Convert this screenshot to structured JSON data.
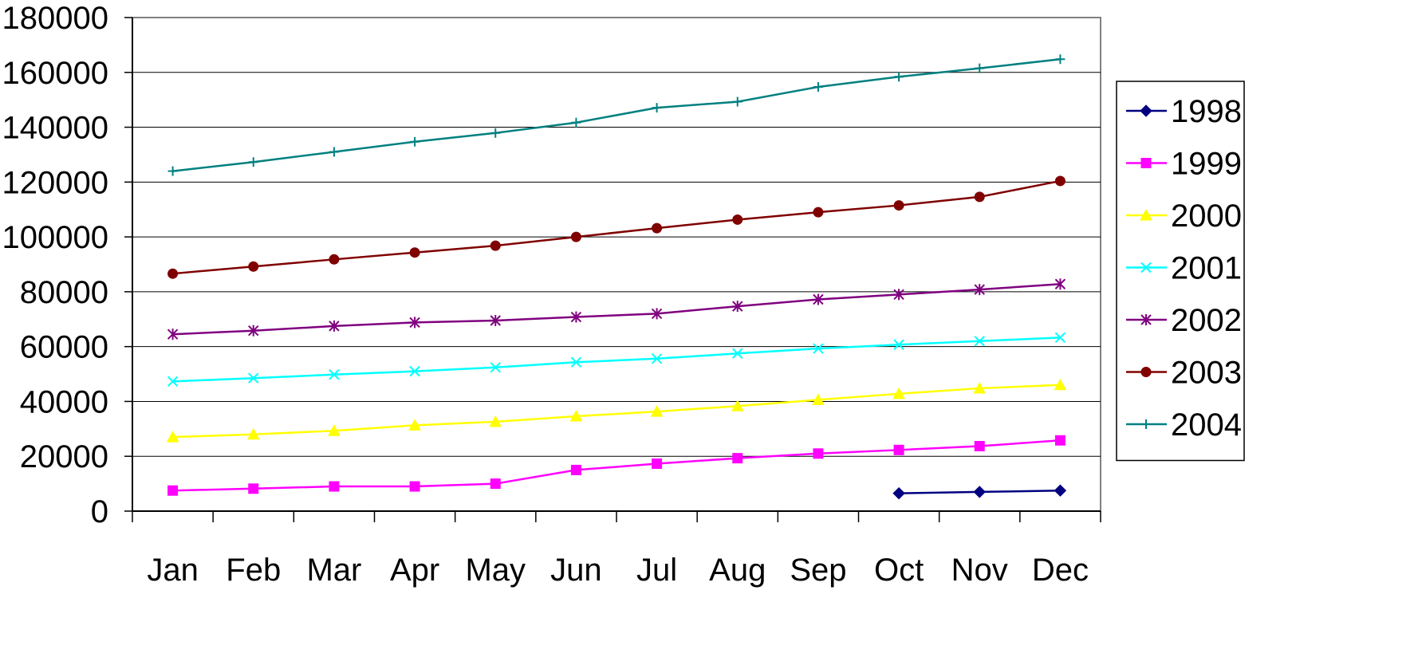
{
  "chart_data": {
    "type": "line",
    "title": "",
    "xlabel": "",
    "ylabel": "",
    "categories": [
      "Jan",
      "Feb",
      "Mar",
      "Apr",
      "May",
      "Jun",
      "Jul",
      "Aug",
      "Sep",
      "Oct",
      "Nov",
      "Dec"
    ],
    "ylim": [
      0,
      180000
    ],
    "yticks": [
      "0",
      "20000",
      "40000",
      "60000",
      "80000",
      "100000",
      "120000",
      "140000",
      "160000",
      "180000"
    ],
    "grid": "horizontal",
    "legend": "right",
    "series": [
      {
        "name": "1998",
        "color": "#000080",
        "marker": "diamond",
        "values": [
          null,
          null,
          null,
          null,
          null,
          null,
          null,
          null,
          null,
          6500,
          7000,
          7500
        ]
      },
      {
        "name": "1999",
        "color": "#FF00FF",
        "marker": "square",
        "values": [
          7500,
          8200,
          9000,
          9000,
          10000,
          15000,
          17300,
          19300,
          21000,
          22300,
          23700,
          25800
        ]
      },
      {
        "name": "2000",
        "color": "#FFFF00",
        "marker": "triangle",
        "values": [
          27000,
          28000,
          29300,
          31300,
          32600,
          34600,
          36300,
          38300,
          40600,
          42800,
          44800,
          46000
        ]
      },
      {
        "name": "2001",
        "color": "#00FFFF",
        "marker": "x",
        "values": [
          47300,
          48500,
          49800,
          51000,
          52400,
          54300,
          55600,
          57500,
          59300,
          60700,
          62000,
          63300
        ]
      },
      {
        "name": "2002",
        "color": "#800080",
        "marker": "star",
        "values": [
          64500,
          65800,
          67500,
          68800,
          69500,
          70800,
          72000,
          74700,
          77200,
          79000,
          80800,
          82800
        ]
      },
      {
        "name": "2003",
        "color": "#800000",
        "marker": "circle",
        "values": [
          86600,
          89200,
          91800,
          94300,
          96800,
          100000,
          103200,
          106300,
          109000,
          111500,
          114600,
          120400
        ]
      },
      {
        "name": "2004",
        "color": "#008080",
        "marker": "plus",
        "values": [
          124000,
          127300,
          131000,
          134700,
          137900,
          141700,
          147100,
          149300,
          154700,
          158400,
          161500,
          164800
        ]
      }
    ]
  }
}
